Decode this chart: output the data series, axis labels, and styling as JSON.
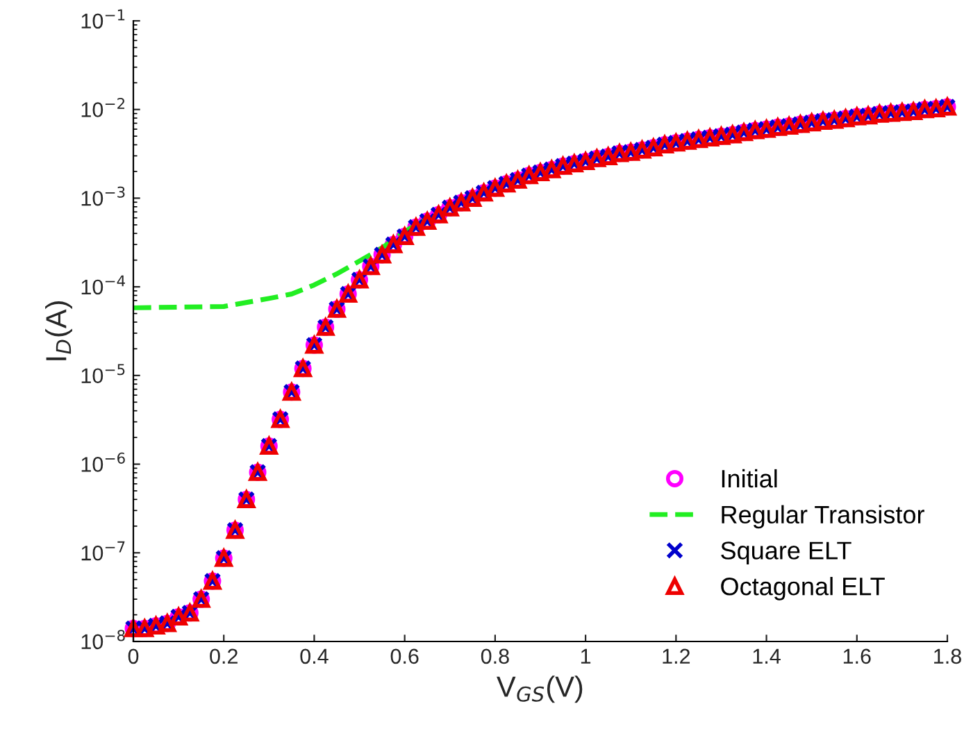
{
  "chart_data": {
    "type": "scatter",
    "xlabel": "V$_{GS}$(V)",
    "ylabel": "I$_{D}$(A)",
    "log": "y",
    "grid": false,
    "legend": "bottom right",
    "xlim": [
      0,
      1.8
    ],
    "xticks": [
      0,
      0.2,
      0.4,
      0.6,
      0.8,
      1,
      1.2,
      1.4,
      1.6,
      1.8
    ],
    "ylim": [
      1e-08,
      0.1
    ],
    "yticks": [
      {
        "value": 1e-08,
        "label": "10$^{−8}$"
      },
      {
        "value": 1e-07,
        "label": "10$^{−7}$"
      },
      {
        "value": 1e-06,
        "label": "10$^{−6}$"
      },
      {
        "value": 1e-05,
        "label": "10$^{−5}$"
      },
      {
        "value": 0.0001,
        "label": "10$^{−4}$"
      },
      {
        "value": 0.001,
        "label": "10$^{−3}$"
      },
      {
        "value": 0.01,
        "label": "10$^{−2}$"
      },
      {
        "value": 0.1,
        "label": "10$^{−1}$"
      }
    ],
    "x": [
      0,
      0.025,
      0.05,
      0.075,
      0.1,
      0.125,
      0.15,
      0.175,
      0.2,
      0.225,
      0.25,
      0.275,
      0.3,
      0.325,
      0.35,
      0.375,
      0.4,
      0.425,
      0.45,
      0.475,
      0.5,
      0.525,
      0.55,
      0.575,
      0.6,
      0.625,
      0.65,
      0.675,
      0.7,
      0.725,
      0.75,
      0.775,
      0.8,
      0.825,
      0.85,
      0.875,
      0.9,
      0.925,
      0.95,
      0.975,
      1,
      1.025,
      1.05,
      1.075,
      1.1,
      1.125,
      1.15,
      1.175,
      1.2,
      1.225,
      1.25,
      1.275,
      1.3,
      1.325,
      1.35,
      1.375,
      1.4,
      1.425,
      1.45,
      1.475,
      1.5,
      1.525,
      1.55,
      1.575,
      1.6,
      1.625,
      1.65,
      1.675,
      1.7,
      1.725,
      1.75,
      1.775,
      1.8
    ],
    "series": [
      {
        "name": "Initial",
        "marker": "circle",
        "color": "#ff00ff",
        "values": [
          1.4e-08,
          1.4e-08,
          1.5e-08,
          1.6e-08,
          1.9e-08,
          2.1e-08,
          3e-08,
          4.8e-08,
          8.7e-08,
          1.8e-07,
          4e-07,
          8.1e-07,
          1.6e-06,
          3.2e-06,
          6.5e-06,
          1.2e-05,
          2.2e-05,
          3.5e-05,
          5.6e-05,
          8.3e-05,
          0.00012,
          0.00017,
          0.00023,
          0.0003,
          0.00037,
          0.00047,
          0.00055,
          0.00065,
          0.00078,
          0.00089,
          0.001,
          0.00115,
          0.0013,
          0.00145,
          0.0016,
          0.0018,
          0.00195,
          0.0021,
          0.0023,
          0.00245,
          0.0026,
          0.0028,
          0.00295,
          0.0032,
          0.0033,
          0.0035,
          0.0037,
          0.004,
          0.0042,
          0.0044,
          0.0046,
          0.0048,
          0.005,
          0.0052,
          0.0055,
          0.0058,
          0.006,
          0.0063,
          0.0065,
          0.0068,
          0.0071,
          0.0074,
          0.0076,
          0.0079,
          0.0083,
          0.0085,
          0.0089,
          0.0091,
          0.0093,
          0.0095,
          0.01,
          0.0102,
          0.0107
        ]
      },
      {
        "name": "Regular Transistor",
        "type": "line",
        "marker": "none",
        "line_style": "dashed",
        "color": "#22ee22",
        "x": [
          0,
          0.1,
          0.2,
          0.3,
          0.35,
          0.4,
          0.45,
          0.5,
          0.55,
          0.6,
          0.65
        ],
        "values": [
          5.8e-05,
          5.9e-05,
          6e-05,
          7.4e-05,
          8.3e-05,
          0.000105,
          0.00014,
          0.000195,
          0.000275,
          0.00042,
          0.00059
        ]
      },
      {
        "name": "Square ELT",
        "marker": "cross",
        "color": "#0000cc",
        "values": [
          1.4e-08,
          1.4e-08,
          1.5e-08,
          1.6e-08,
          1.9e-08,
          2.1e-08,
          3e-08,
          4.8e-08,
          8.7e-08,
          1.8e-07,
          4e-07,
          8.1e-07,
          1.6e-06,
          3.2e-06,
          6.5e-06,
          1.2e-05,
          2.2e-05,
          3.5e-05,
          5.6e-05,
          8.3e-05,
          0.00012,
          0.00017,
          0.00023,
          0.0003,
          0.00037,
          0.00047,
          0.00055,
          0.00065,
          0.00078,
          0.00089,
          0.001,
          0.00115,
          0.0013,
          0.00145,
          0.0016,
          0.0018,
          0.00195,
          0.0021,
          0.0023,
          0.00245,
          0.0026,
          0.0028,
          0.00295,
          0.0032,
          0.0033,
          0.0035,
          0.0037,
          0.004,
          0.0042,
          0.0044,
          0.0046,
          0.0048,
          0.005,
          0.0052,
          0.0055,
          0.0058,
          0.006,
          0.0063,
          0.0065,
          0.0068,
          0.0071,
          0.0074,
          0.0076,
          0.0079,
          0.0083,
          0.0085,
          0.0089,
          0.0091,
          0.0093,
          0.0095,
          0.01,
          0.0102,
          0.0107
        ]
      },
      {
        "name": "Octagonal ELT",
        "marker": "triangle",
        "color": "#ee0000",
        "values": [
          1.4e-08,
          1.4e-08,
          1.5e-08,
          1.6e-08,
          1.9e-08,
          2.1e-08,
          3e-08,
          4.8e-08,
          8.7e-08,
          1.8e-07,
          4e-07,
          8.1e-07,
          1.6e-06,
          3.2e-06,
          6.5e-06,
          1.2e-05,
          2.2e-05,
          3.5e-05,
          5.6e-05,
          8.3e-05,
          0.00012,
          0.00017,
          0.00023,
          0.0003,
          0.00037,
          0.00047,
          0.00055,
          0.00065,
          0.00078,
          0.00089,
          0.001,
          0.00115,
          0.0013,
          0.00145,
          0.0016,
          0.0018,
          0.00195,
          0.0021,
          0.0023,
          0.00245,
          0.0026,
          0.0028,
          0.00295,
          0.0032,
          0.0033,
          0.0035,
          0.0037,
          0.004,
          0.0042,
          0.0044,
          0.0046,
          0.0048,
          0.005,
          0.0052,
          0.0055,
          0.0058,
          0.006,
          0.0063,
          0.0065,
          0.0068,
          0.0071,
          0.0074,
          0.0076,
          0.0079,
          0.0083,
          0.0085,
          0.0089,
          0.0091,
          0.0093,
          0.0095,
          0.01,
          0.0102,
          0.0107
        ]
      }
    ]
  }
}
